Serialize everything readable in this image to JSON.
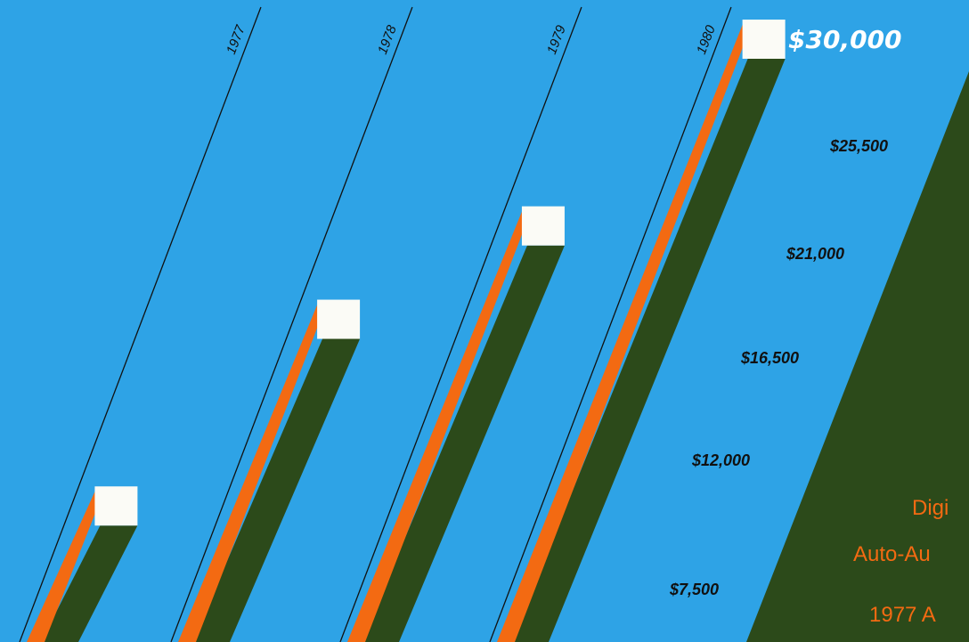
{
  "chart_data": {
    "type": "bar",
    "categories": [
      "1977",
      "1978",
      "1979",
      "1980"
    ],
    "values": [
      7500,
      16500,
      21000,
      30000
    ],
    "value_ticks": [
      "$7,500",
      "$12,000",
      "$16,500",
      "$21,000",
      "$25,500",
      "$30,000"
    ],
    "title": "",
    "xlabel": "",
    "ylabel": "",
    "ylim": [
      0,
      30000
    ],
    "grid": false,
    "legend": "none"
  },
  "side_panel": {
    "lines": [
      "Digi",
      "Auto-Au",
      "1977 A"
    ]
  },
  "colors": {
    "background": "#2ea3e6",
    "bar_front": "#f36a12",
    "bar_side": "#2c4a1a",
    "bar_cap": "#fbfbf6",
    "panel": "#2c4a1a",
    "panel_text": "#f36a12"
  }
}
